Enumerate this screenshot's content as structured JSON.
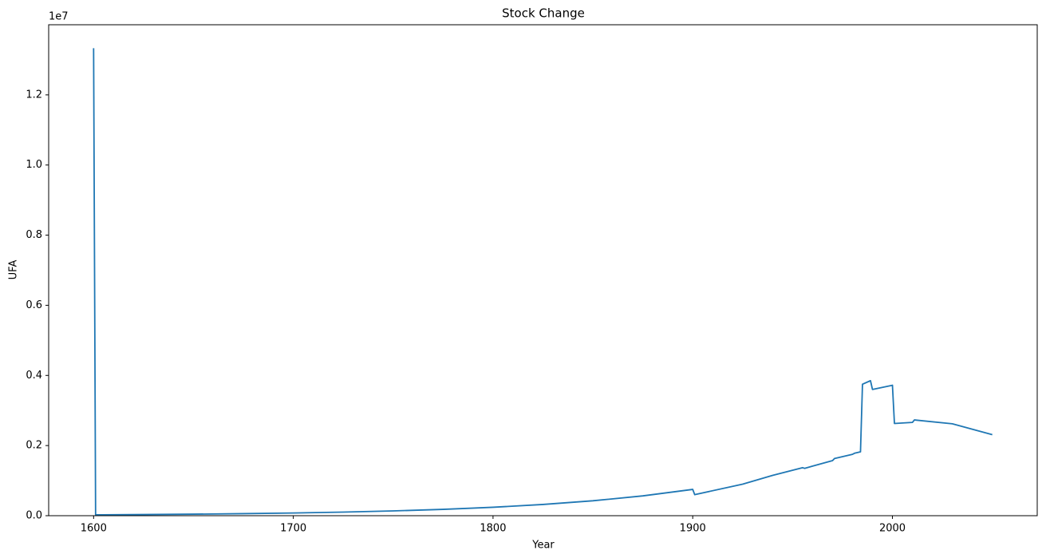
{
  "chart_data": {
    "type": "line",
    "title": "Stock Change",
    "x_label": "Year",
    "y_label": "UFA",
    "y_offset_label": "1e7",
    "x": [
      1600,
      1601,
      1625,
      1650,
      1675,
      1700,
      1725,
      1750,
      1775,
      1800,
      1825,
      1850,
      1875,
      1900,
      1901,
      1925,
      1940,
      1955,
      1956,
      1970,
      1971,
      1980,
      1981,
      1984,
      1985,
      1989,
      1990,
      2000,
      2001,
      2010,
      2011,
      2030,
      2050
    ],
    "series": [
      {
        "name": "UFA",
        "color": "#1f77b4",
        "values": [
          13330000,
          25000,
          32800,
          43700,
          58000,
          77000,
          102500,
          136000,
          181000,
          240000,
          320000,
          425000,
          565000,
          750000,
          600000,
          900000,
          1150000,
          1370000,
          1350000,
          1570000,
          1630000,
          1750000,
          1780000,
          1820000,
          3750000,
          3850000,
          3600000,
          3720000,
          2630000,
          2660000,
          2730000,
          2620000,
          2310000
        ]
      }
    ],
    "xlim": [
      1577.5,
      2072.5
    ],
    "xticks": [
      1600,
      1700,
      1800,
      1900,
      2000
    ],
    "ylim": [
      0,
      14000000
    ],
    "yticks": [
      {
        "value": 0,
        "label": "0.0"
      },
      {
        "value": 2000000,
        "label": "0.2"
      },
      {
        "value": 4000000,
        "label": "0.4"
      },
      {
        "value": 6000000,
        "label": "0.6"
      },
      {
        "value": 8000000,
        "label": "0.8"
      },
      {
        "value": 10000000,
        "label": "1.0"
      },
      {
        "value": 12000000,
        "label": "1.2"
      }
    ],
    "grid": false
  }
}
